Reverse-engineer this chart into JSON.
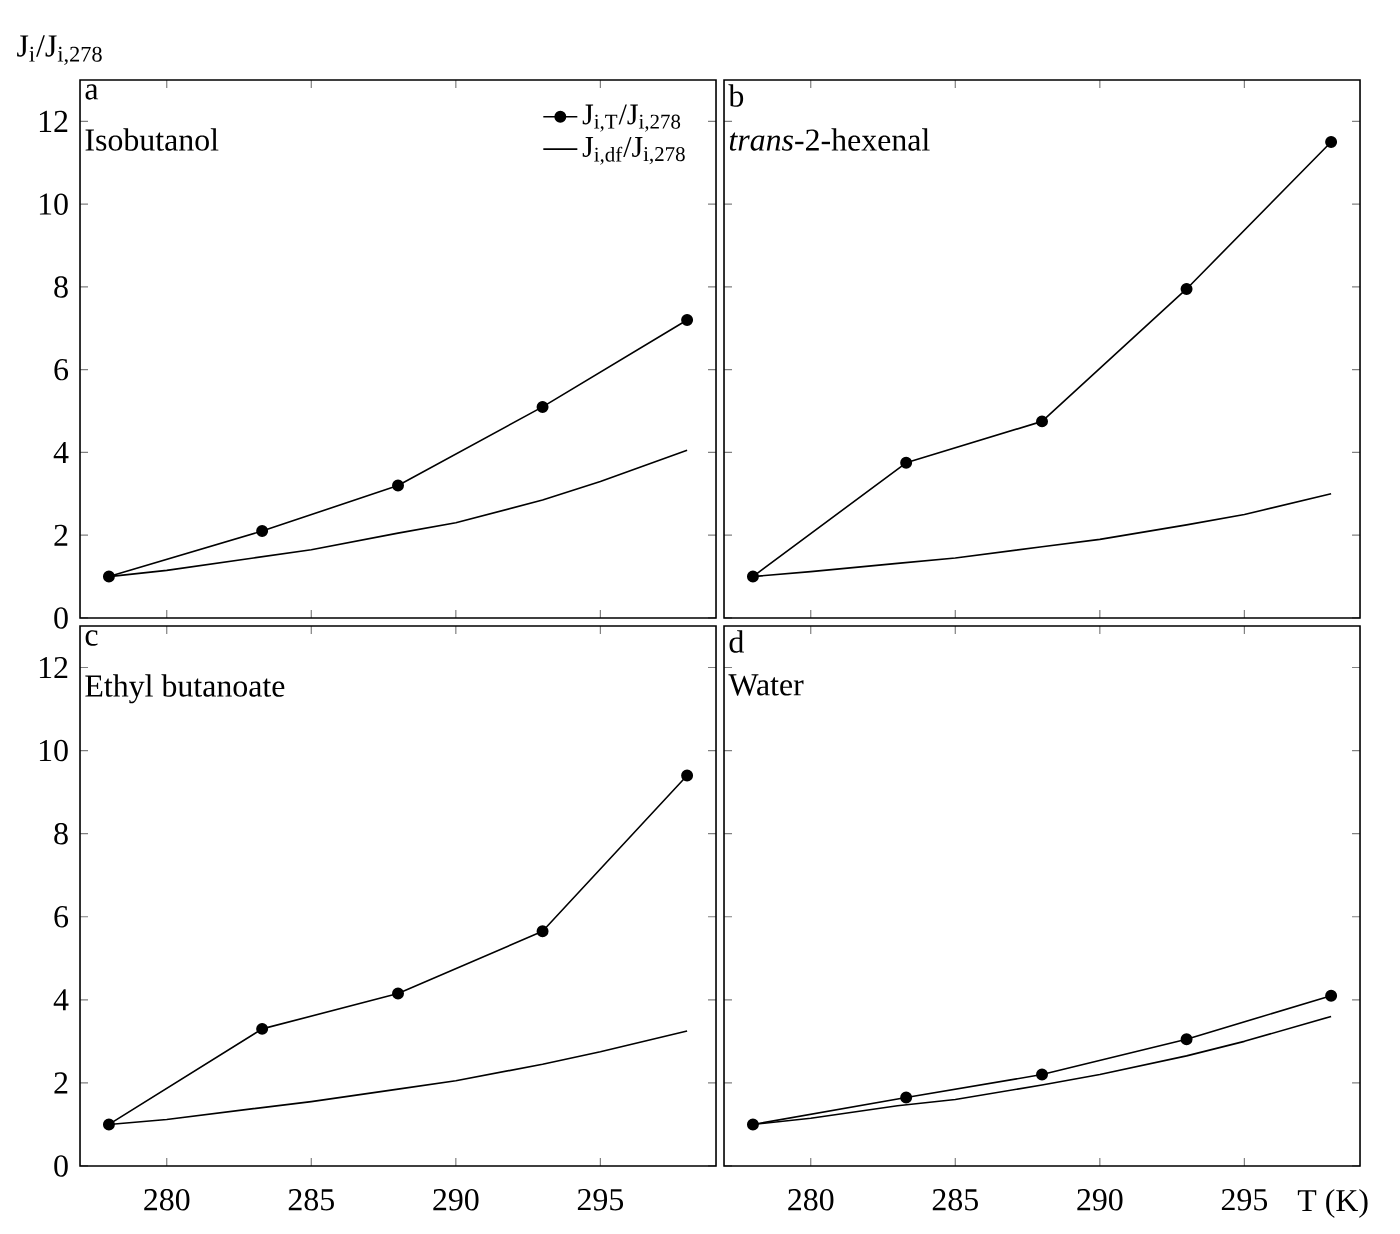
{
  "chart_data": [
    {
      "type": "line",
      "ylabel": "J$_{i}$/J$_{i,278}$",
      "annotations": [
        "a",
        "Isobutanol"
      ],
      "xlim": [
        277,
        299
      ],
      "ylim": [
        0,
        13
      ],
      "xticks": [
        280,
        285,
        290,
        295
      ],
      "yticks": [
        0,
        2,
        4,
        6,
        8,
        10,
        12
      ],
      "tick_labels": "y",
      "legend": "top right",
      "series": [
        {
          "name": "J$_{i,T}$/J$_{i,278}$",
          "color": "#000000",
          "marker": "circle",
          "x": [
            278,
            283.3,
            288,
            293,
            298
          ],
          "values": [
            1.0,
            2.1,
            3.2,
            5.1,
            7.2
          ]
        },
        {
          "name": "J$_{i,df}$/J$_{i,278}$",
          "color": "#000000",
          "marker": "none",
          "x": [
            278,
            280,
            283,
            285,
            288,
            290,
            293,
            295,
            298
          ],
          "values": [
            1.0,
            1.15,
            1.45,
            1.65,
            2.05,
            2.3,
            2.85,
            3.3,
            4.05
          ]
        }
      ]
    },
    {
      "type": "line",
      "annotations": [
        "b",
        "*trans*-2-hexenal"
      ],
      "xlim": [
        277,
        299
      ],
      "ylim": [
        0,
        13
      ],
      "xticks": [
        280,
        285,
        290,
        295
      ],
      "yticks": [
        0,
        2,
        4,
        6,
        8,
        10,
        12
      ],
      "tick_labels": false,
      "series": [
        {
          "color": "#000000",
          "marker": "circle",
          "x": [
            278,
            283.3,
            288,
            293,
            298
          ],
          "values": [
            1.0,
            3.75,
            4.75,
            7.95,
            11.5
          ]
        },
        {
          "color": "#000000",
          "marker": "none",
          "x": [
            278,
            280,
            283,
            285,
            288,
            290,
            293,
            295,
            298
          ],
          "values": [
            1.0,
            1.12,
            1.32,
            1.45,
            1.72,
            1.9,
            2.25,
            2.5,
            3.0
          ]
        }
      ]
    },
    {
      "type": "line",
      "annotations": [
        "c",
        "Ethyl butanoate"
      ],
      "xlim": [
        277,
        299
      ],
      "ylim": [
        0,
        13
      ],
      "xticks": [
        280,
        285,
        290,
        295
      ],
      "yticks": [
        0,
        2,
        4,
        6,
        8,
        10,
        12
      ],
      "series": [
        {
          "color": "#000000",
          "marker": "circle",
          "x": [
            278,
            283.3,
            288,
            293,
            298
          ],
          "values": [
            1.0,
            3.3,
            4.15,
            5.65,
            9.4
          ]
        },
        {
          "color": "#000000",
          "marker": "none",
          "x": [
            278,
            280,
            283,
            285,
            288,
            290,
            293,
            295,
            298
          ],
          "values": [
            1.0,
            1.12,
            1.38,
            1.55,
            1.85,
            2.05,
            2.45,
            2.75,
            3.25
          ]
        }
      ]
    },
    {
      "type": "line",
      "xlabel": "T (K)",
      "annotations": [
        "d",
        "Water"
      ],
      "xlim": [
        277,
        299
      ],
      "ylim": [
        0,
        13
      ],
      "xticks": [
        280,
        285,
        290,
        295
      ],
      "yticks": [
        0,
        2,
        4,
        6,
        8,
        10,
        12
      ],
      "tick_labels": "x",
      "series": [
        {
          "color": "#000000",
          "marker": "circle",
          "x": [
            278,
            283.3,
            288,
            293,
            298
          ],
          "values": [
            1.0,
            1.65,
            2.2,
            3.05,
            4.1
          ]
        },
        {
          "color": "#000000",
          "marker": "none",
          "x": [
            278,
            280,
            283,
            285,
            288,
            290,
            293,
            295,
            298
          ],
          "values": [
            1.0,
            1.15,
            1.45,
            1.6,
            1.95,
            2.2,
            2.65,
            3.0,
            3.6
          ]
        }
      ]
    }
  ]
}
